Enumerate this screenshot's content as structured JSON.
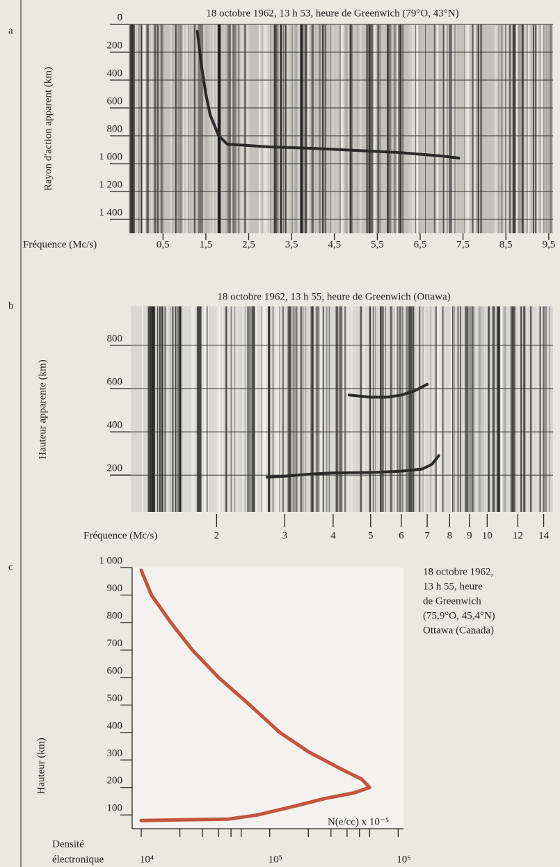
{
  "chart_data": [
    {
      "type": "ionogram",
      "label": "a",
      "title": "18 octobre 1962, 13 h 53, heure de Greenwich (79°O, 43°N)",
      "xlabel": "Fréquence (Mc/s)",
      "ylabel": "Rayon d'action apparent (km)",
      "xlim": [
        -0.3,
        9.6
      ],
      "ylim": [
        0,
        1500
      ],
      "y_inverted": true,
      "grid": true,
      "xticks": [
        {
          "value": 0.5,
          "label": "0,5"
        },
        {
          "value": 1.5,
          "label": "1,5"
        },
        {
          "value": 2.5,
          "label": "2,5"
        },
        {
          "value": 3.5,
          "label": "3,5"
        },
        {
          "value": 4.5,
          "label": "4,5"
        },
        {
          "value": 5.5,
          "label": "5,5"
        },
        {
          "value": 6.5,
          "label": "6,5"
        },
        {
          "value": 7.5,
          "label": "7,5"
        },
        {
          "value": 8.5,
          "label": "8,5"
        },
        {
          "value": 9.5,
          "label": "9,5"
        }
      ],
      "yticks": [
        0,
        200,
        400,
        600,
        800,
        {
          "value": 1000,
          "label": "1 000"
        },
        {
          "value": 1200,
          "label": "1 200"
        },
        {
          "value": 1400,
          "label": "1 400"
        }
      ],
      "series": [
        {
          "color": "#2a2a2a",
          "x": [
            1.3,
            1.4,
            1.5,
            1.6,
            1.8,
            2.0,
            3.0,
            4.0,
            5.0,
            6.0,
            7.0,
            7.4
          ],
          "values": [
            50,
            300,
            500,
            650,
            800,
            860,
            880,
            890,
            905,
            920,
            945,
            960
          ]
        }
      ]
    },
    {
      "type": "ionogram",
      "label": "b",
      "title": "18 octobre 1962, 13 h 55, heure de Greenwich (Ottawa)",
      "xlabel": "Fréquence (Mc/s)",
      "ylabel": "Hauteur apparente (km)",
      "xlim": [
        1.2,
        14.8
      ],
      "xscale": "log",
      "ylim": [
        30,
        980
      ],
      "grid": true,
      "xticks": [
        2,
        3,
        4,
        5,
        6,
        7,
        8,
        9,
        10,
        12,
        14
      ],
      "yticks": [
        200,
        400,
        600,
        800
      ],
      "series": [
        {
          "color": "#2a2a2a",
          "x": [
            2.7,
            3.0,
            3.5,
            4.0,
            5.0,
            6.0,
            6.8,
            7.2,
            7.5
          ],
          "values": [
            190,
            195,
            205,
            210,
            212,
            218,
            228,
            250,
            290
          ]
        },
        {
          "color": "#2a2a2a",
          "x": [
            4.4,
            5.0,
            5.5,
            6.0,
            6.5,
            7.0
          ],
          "values": [
            570,
            560,
            560,
            570,
            590,
            620
          ]
        }
      ]
    },
    {
      "type": "line",
      "label": "c",
      "ylabel": "Hauteur (km)",
      "xlabel": "N(e/cc) x 10⁻⁵",
      "xlabel2": [
        "Densité",
        "électronique"
      ],
      "annotation": [
        "18 octobre 1962,",
        "13 h 55, heure",
        "de Greenwich",
        "(75,9°O, 45,4°N)",
        "Ottawa (Canada)"
      ],
      "xscale": "log",
      "xlim": [
        8500,
        1100000
      ],
      "ylim": [
        50,
        1000
      ],
      "xticks": [
        {
          "value": 10000,
          "label": "10⁴"
        },
        {
          "value": 100000,
          "label": "10⁵"
        },
        {
          "value": 1000000,
          "label": "10⁶"
        }
      ],
      "minor_xticks": [
        20000,
        30000,
        40000,
        50000,
        60000,
        200000,
        300000,
        400000,
        500000,
        600000
      ],
      "yticks": [
        100,
        200,
        300,
        400,
        500,
        600,
        700,
        800,
        900,
        {
          "value": 1000,
          "label": "1 000"
        }
      ],
      "series": [
        {
          "color": "#c4553b",
          "x": [
            10000,
            48000,
            80000,
            150000,
            270000,
            450000,
            600000,
            520000,
            350000,
            200000,
            120000,
            70000,
            40000,
            25000,
            17000,
            12000,
            10000
          ],
          "values": [
            80,
            85,
            100,
            130,
            160,
            180,
            200,
            230,
            270,
            330,
            400,
            500,
            600,
            700,
            800,
            900,
            990
          ]
        }
      ]
    }
  ]
}
